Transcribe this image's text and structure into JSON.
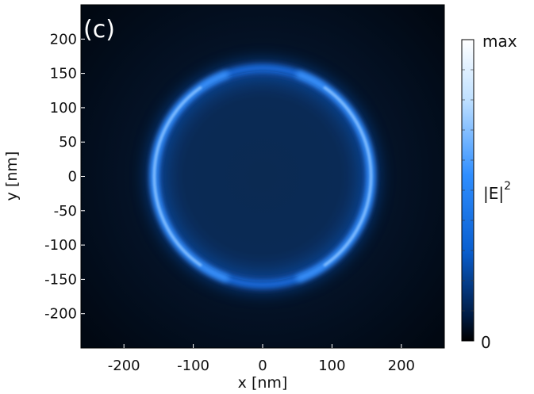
{
  "chart_data": {
    "type": "heatmap",
    "panel_label": "(c)",
    "xlabel": "x [nm]",
    "ylabel": "y [nm]",
    "xlim": [
      -262,
      262
    ],
    "ylim": [
      -250,
      250
    ],
    "xticks": [
      -200,
      -100,
      0,
      100,
      200
    ],
    "yticks": [
      -200,
      -150,
      -100,
      -50,
      0,
      50,
      100,
      150,
      200
    ],
    "ring": {
      "center": [
        0,
        0
      ],
      "radius_nm": 157
    },
    "colorbar": {
      "quantity": "|E|",
      "exponent": "2",
      "min_label": "0",
      "max_label": "max",
      "colors": [
        "#000000",
        "#001a40",
        "#0a5fd0",
        "#2f8eff",
        "#bfe0ff",
        "#ffffff"
      ]
    }
  }
}
